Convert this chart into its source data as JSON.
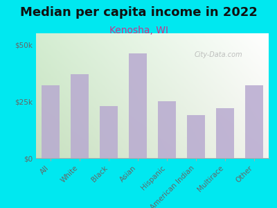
{
  "title": "Median per capita income in 2022",
  "subtitle": "Kenosha, WI",
  "categories": [
    "All",
    "White",
    "Black",
    "Asian",
    "Hispanic",
    "American Indian",
    "Multirace",
    "Other"
  ],
  "values": [
    32000,
    37000,
    23000,
    46000,
    25000,
    19000,
    22000,
    32000
  ],
  "bar_color": "#b8aad0",
  "background_outer": "#00e8f0",
  "title_color": "#111111",
  "subtitle_color": "#cc3388",
  "tick_label_color": "#666666",
  "ytick_labels": [
    "$0",
    "$25k",
    "$50k"
  ],
  "ytick_values": [
    0,
    25000,
    50000
  ],
  "ylim": [
    0,
    55000
  ],
  "watermark": "City-Data.com",
  "title_fontsize": 13,
  "subtitle_fontsize": 10,
  "tick_fontsize": 7.5
}
